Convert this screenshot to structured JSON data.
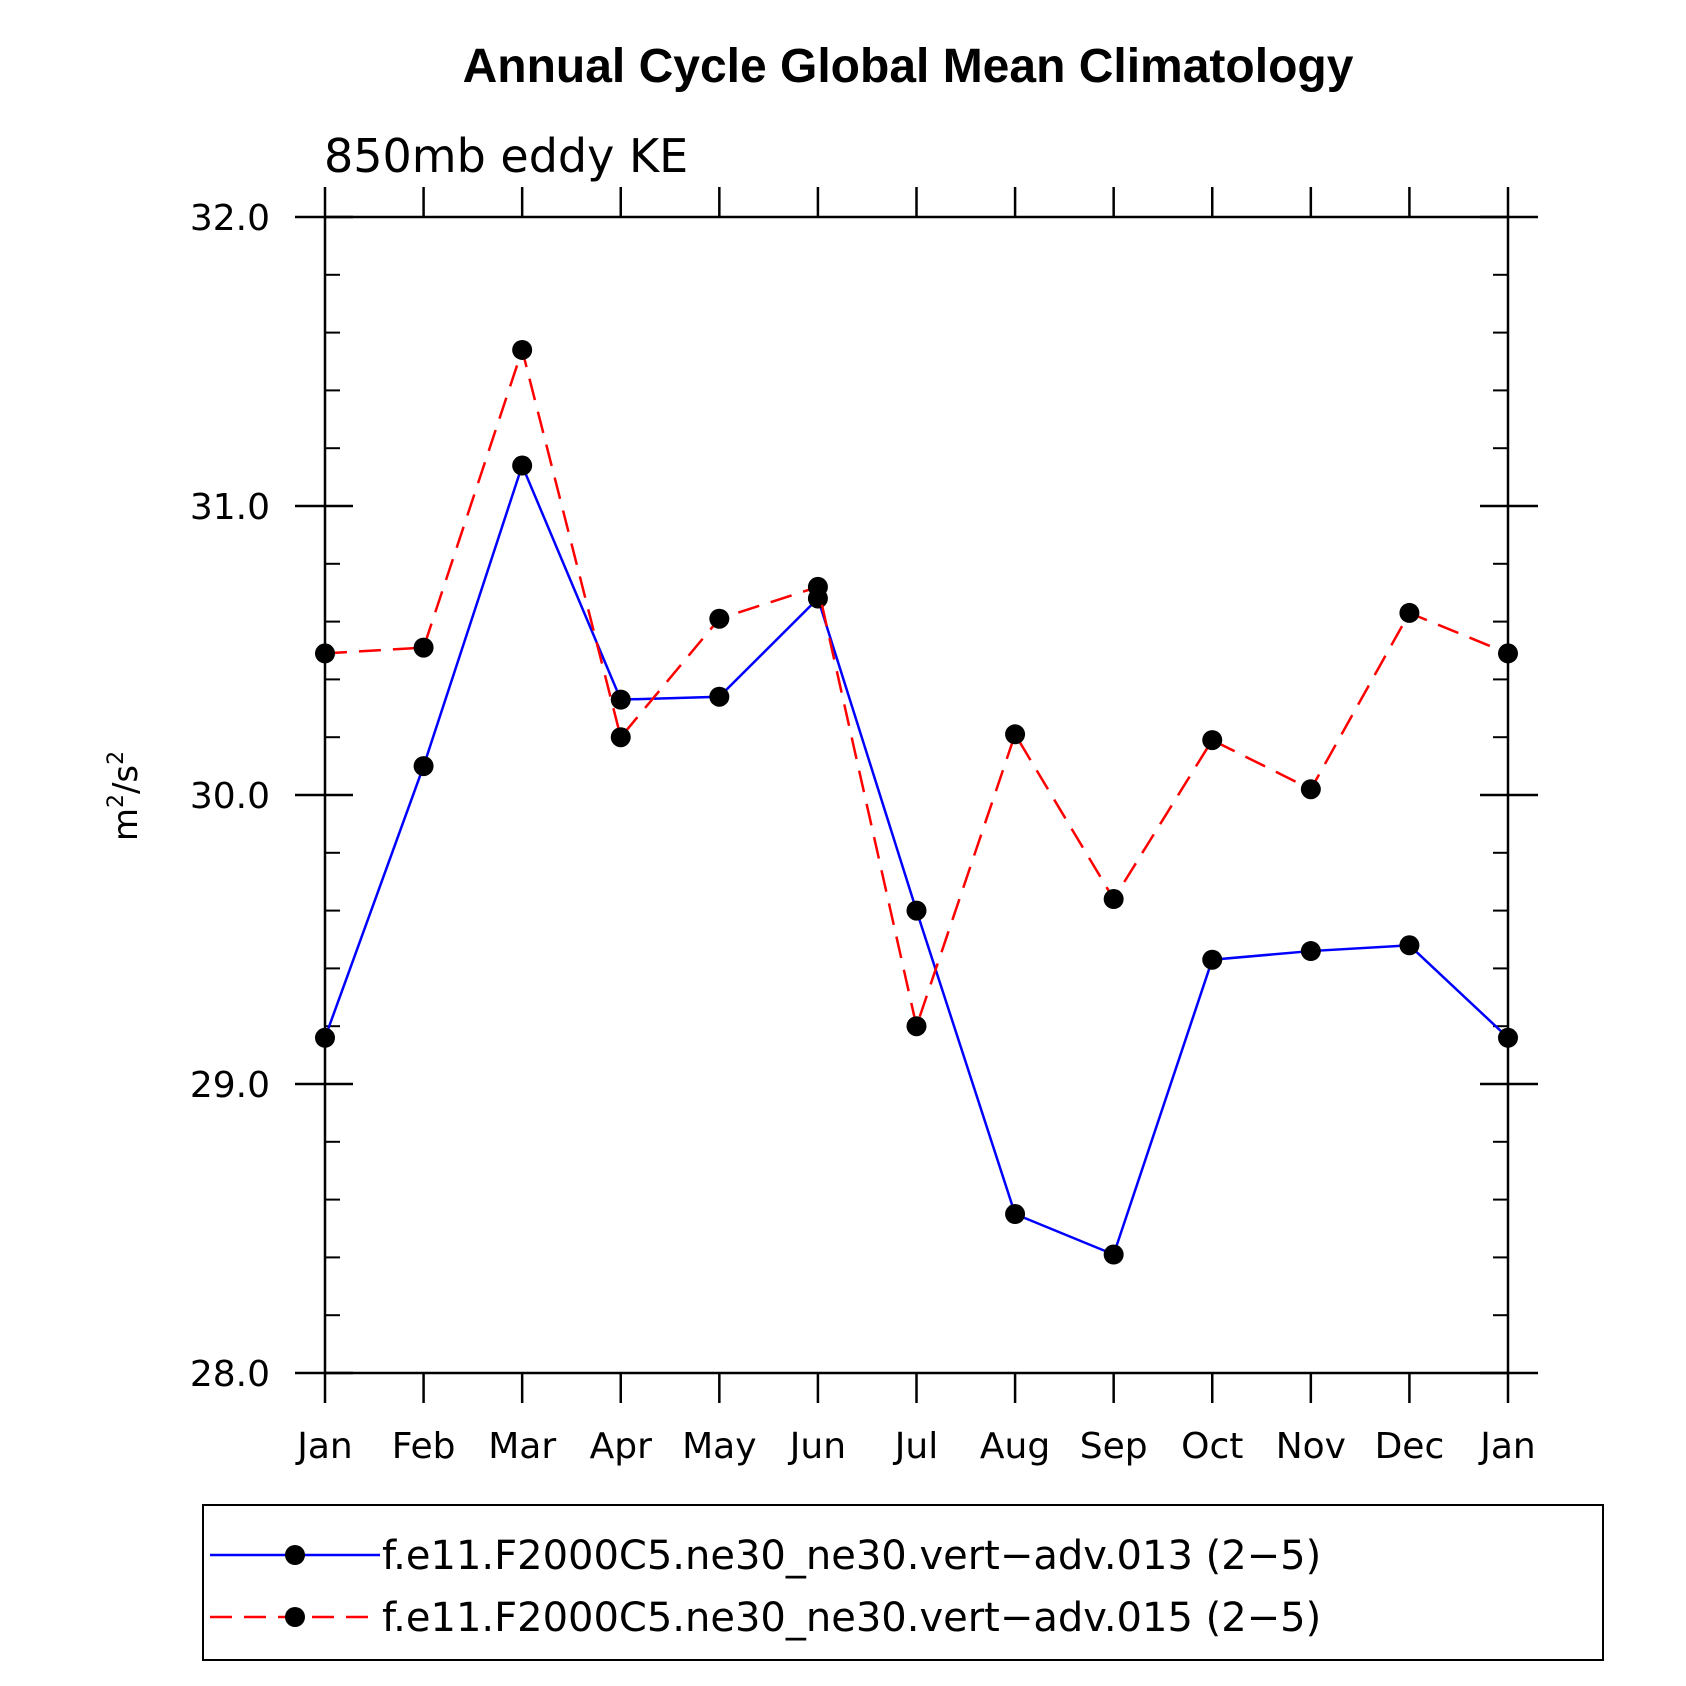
{
  "chart_data": {
    "type": "line",
    "title": "Annual Cycle Global Mean Climatology",
    "subtitle": "850mb eddy KE",
    "ylabel_base": "m",
    "ylabel_sup1": "2",
    "ylabel_mid": "/s",
    "ylabel_sup2": "2",
    "categories": [
      "Jan",
      "Feb",
      "Mar",
      "Apr",
      "May",
      "Jun",
      "Jul",
      "Aug",
      "Sep",
      "Oct",
      "Nov",
      "Dec",
      "Jan"
    ],
    "ylim": [
      28.0,
      32.0
    ],
    "yticks": [
      "28.0",
      "29.0",
      "30.0",
      "31.0",
      "32.0"
    ],
    "ytick_values": [
      28.0,
      29.0,
      30.0,
      31.0,
      32.0
    ],
    "yminor_step": 0.2,
    "series": [
      {
        "name": "f.e11.F2000C5.ne30_ne30.vert−adv.013 (2−5)",
        "color": "#0000ff",
        "dash": "solid",
        "values": [
          29.16,
          30.1,
          31.14,
          30.33,
          30.34,
          30.68,
          29.6,
          28.55,
          28.41,
          29.43,
          29.46,
          29.48,
          29.16
        ]
      },
      {
        "name": "f.e11.F2000C5.ne30_ne30.vert−adv.015 (2−5)",
        "color": "#ff0000",
        "dash": "dashed",
        "values": [
          30.49,
          30.51,
          31.54,
          30.2,
          30.61,
          30.72,
          29.2,
          30.21,
          29.64,
          30.19,
          30.02,
          30.63,
          30.49
        ]
      }
    ],
    "marker_color": "#000000",
    "legend_position": "bottom"
  }
}
